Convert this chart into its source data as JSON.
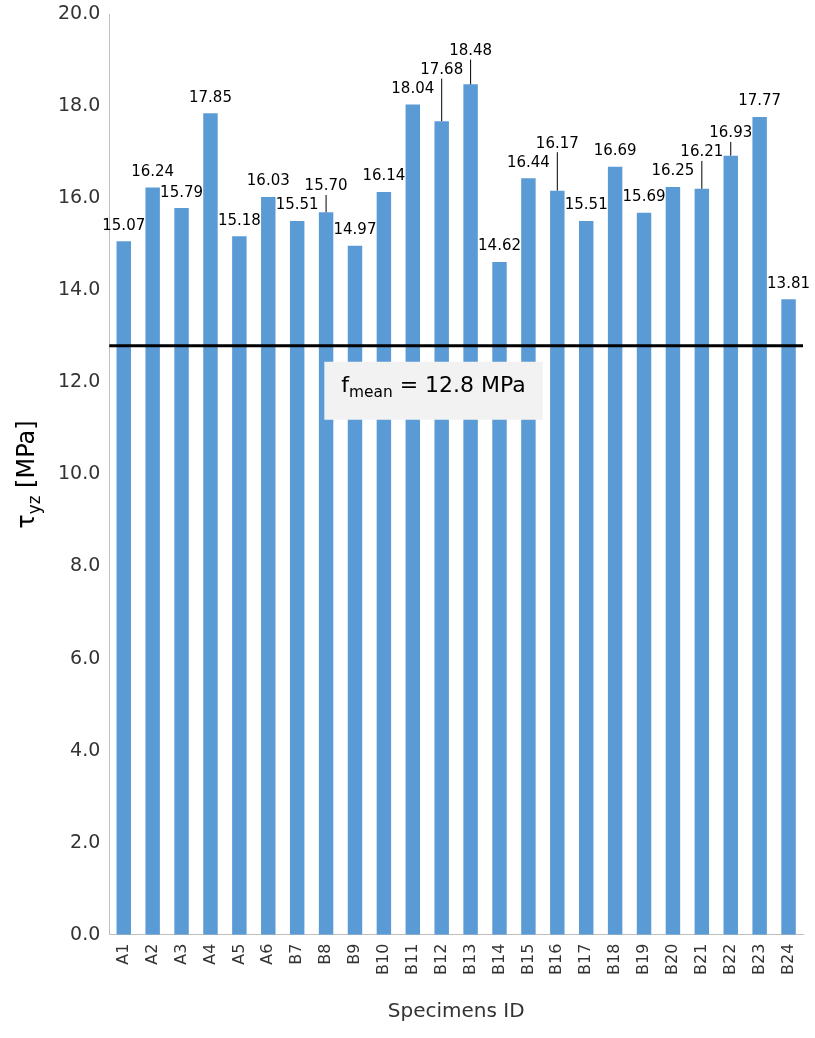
{
  "chart_data": {
    "type": "bar",
    "xlabel": "Specimens ID",
    "ylabel": "τ$_{yz}$ [MPa]",
    "categories": [
      "A1",
      "A2",
      "A3",
      "A4",
      "A5",
      "A6",
      "B7",
      "B8",
      "B9",
      "B10",
      "B11",
      "B12",
      "B13",
      "B14",
      "B15",
      "B16",
      "B17",
      "B18",
      "B19",
      "B20",
      "B21",
      "B22",
      "B23",
      "B24"
    ],
    "values": [
      15.07,
      16.24,
      15.79,
      17.85,
      15.18,
      16.03,
      15.51,
      15.7,
      14.97,
      16.14,
      18.04,
      17.68,
      18.48,
      14.62,
      16.44,
      16.17,
      15.51,
      16.69,
      15.69,
      16.25,
      16.21,
      16.93,
      17.77,
      13.81
    ],
    "color": "#5b9bd5",
    "value_labels": [
      "15.07",
      "16.24",
      "15.79",
      "17.85",
      "15.18",
      "16.03",
      "15.51",
      "15.70",
      "14.97",
      "16.14",
      "18.04",
      "17.68",
      "18.48",
      "14.62",
      "16.44",
      "16.17",
      "15.51",
      "16.69",
      "15.69",
      "16.25",
      "16.21",
      "16.93",
      "17.77",
      "13.81"
    ],
    "ylim": [
      0,
      20
    ],
    "yticks": [
      {
        "value": 0,
        "label": "0.0"
      },
      {
        "value": 2,
        "label": "2.0"
      },
      {
        "value": 4,
        "label": "4.0"
      },
      {
        "value": 6,
        "label": "6.0"
      },
      {
        "value": 8,
        "label": "8.0"
      },
      {
        "value": 10,
        "label": "10.0"
      },
      {
        "value": 12,
        "label": "12.0"
      },
      {
        "value": 14,
        "label": "14.0"
      },
      {
        "value": 16,
        "label": "16.0"
      },
      {
        "value": 18,
        "label": "18.0"
      },
      {
        "value": 20,
        "label": "20.0"
      }
    ],
    "ref_lines": [
      {
        "axis": "y",
        "value": 12.8,
        "label": "f$_{mean}$ = 12.8 MPa",
        "color": "#000000"
      }
    ],
    "grid": false,
    "legend": false
  }
}
